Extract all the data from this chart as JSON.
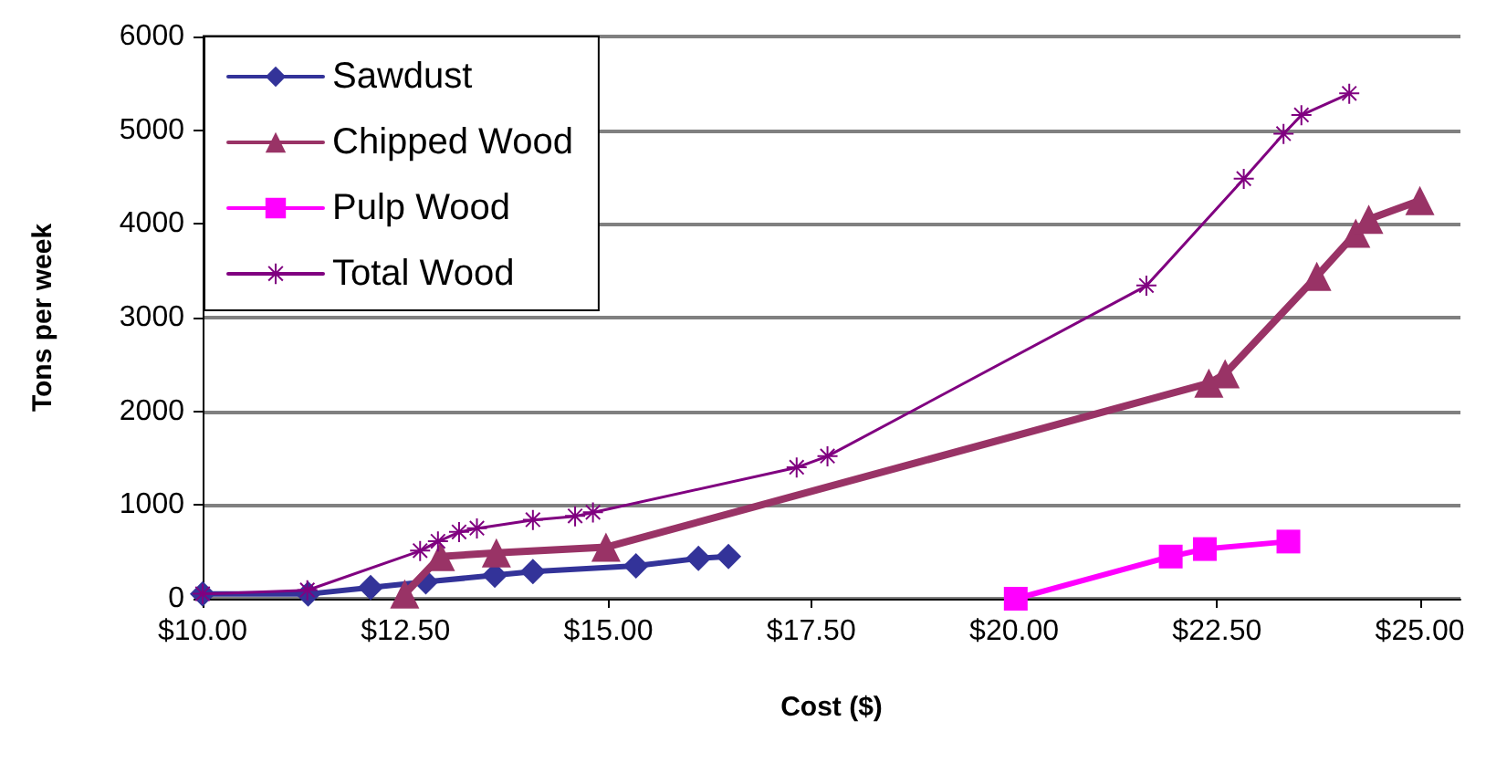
{
  "chart_data": {
    "type": "line",
    "xlabel": "Cost ($)",
    "ylabel": "Tons per week",
    "xlim": [
      10,
      25.5
    ],
    "xticks": [
      {
        "value": 10,
        "label": "$10.00"
      },
      {
        "value": 12.5,
        "label": "$12.50"
      },
      {
        "value": 15,
        "label": "$15.00"
      },
      {
        "value": 17.5,
        "label": "$17.50"
      },
      {
        "value": 20,
        "label": "$20.00"
      },
      {
        "value": 22.5,
        "label": "$22.50"
      },
      {
        "value": 25,
        "label": "$25.00"
      }
    ],
    "ylim": [
      0,
      6000
    ],
    "yticks": [
      0,
      1000,
      2000,
      3000,
      4000,
      5000,
      6000
    ],
    "grid": "y",
    "legend": "top left",
    "series": [
      {
        "name": "Sawdust",
        "color": "#333399",
        "marker": "diamond",
        "x": [
          10,
          11.3,
          12.07,
          12.75,
          13.6,
          14.07,
          15.34,
          16.11,
          16.48
        ],
        "values": [
          50,
          50,
          120,
          180,
          250,
          290,
          350,
          430,
          450
        ]
      },
      {
        "name": "Chipped Wood",
        "color": "#993366",
        "marker": "triangle",
        "x": [
          12.49,
          12.93,
          13.62,
          14.97,
          22.4,
          22.6,
          23.73,
          24.21,
          24.37,
          25.0
        ],
        "values": [
          50,
          450,
          490,
          550,
          2300,
          2400,
          3440,
          3900,
          4050,
          4250
        ]
      },
      {
        "name": "Pulp Wood",
        "color": "#ff00ff",
        "marker": "square",
        "x": [
          20.02,
          21.93,
          22.35,
          23.38
        ],
        "values": [
          0,
          450,
          530,
          610
        ]
      },
      {
        "name": "Total Wood",
        "color": "#800080",
        "marker": "star",
        "x": [
          10,
          11.29,
          12.68,
          12.9,
          13.16,
          13.38,
          14.07,
          14.59,
          14.81,
          17.32,
          17.7,
          21.63,
          22.83,
          23.32,
          23.54,
          24.13
        ],
        "values": [
          50,
          90,
          510,
          610,
          710,
          750,
          840,
          880,
          920,
          1400,
          1520,
          3340,
          4480,
          4960,
          5160,
          5390
        ]
      }
    ]
  }
}
